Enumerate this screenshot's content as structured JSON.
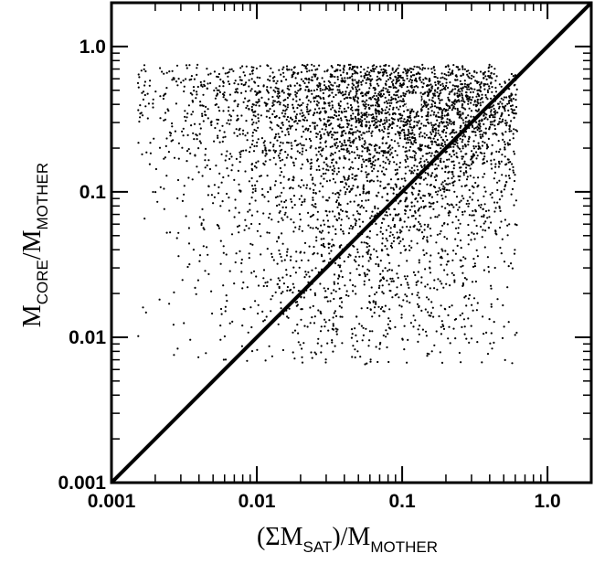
{
  "chart_data": {
    "type": "scatter",
    "title": "",
    "xlabel": {
      "prefix": "(ΣM",
      "sub1": "SAT",
      "mid": ")/M",
      "sub2": "MOTHER"
    },
    "ylabel": {
      "prefix": "M",
      "sub1": "CORE",
      "mid": "/M",
      "sub2": "MOTHER"
    },
    "xscale": "log",
    "yscale": "log",
    "xlim": [
      0.001,
      2.0
    ],
    "ylim": [
      0.001,
      2.0
    ],
    "xticks": [
      {
        "value": 0.001,
        "label": "0.001"
      },
      {
        "value": 0.01,
        "label": "0.01"
      },
      {
        "value": 0.1,
        "label": "0.1"
      },
      {
        "value": 1.0,
        "label": "1.0"
      }
    ],
    "yticks": [
      {
        "value": 0.001,
        "label": "0.001"
      },
      {
        "value": 0.01,
        "label": "0.01"
      },
      {
        "value": 0.1,
        "label": "0.1"
      },
      {
        "value": 1.0,
        "label": "1.0"
      }
    ],
    "grid": false,
    "reference_line": {
      "type": "y=x",
      "x": [
        0.001,
        2.0
      ],
      "y": [
        0.001,
        2.0
      ]
    },
    "highlight_point": {
      "x": 0.12,
      "y": 0.42,
      "marker": "white-square"
    },
    "cloud_regions": [
      {
        "cx": 0.1,
        "cy": 0.45,
        "sx": 1.0,
        "sy": 0.3,
        "n": 2000
      },
      {
        "cx": 0.04,
        "cy": 0.5,
        "sx": 1.4,
        "sy": 0.22,
        "n": 900
      },
      {
        "cx": 0.2,
        "cy": 0.38,
        "sx": 0.6,
        "sy": 0.35,
        "n": 1200
      },
      {
        "cx": 0.1,
        "cy": 0.15,
        "sx": 0.75,
        "sy": 0.55,
        "n": 1400
      },
      {
        "cx": 0.07,
        "cy": 0.04,
        "sx": 0.6,
        "sy": 0.6,
        "n": 800
      },
      {
        "cx": 0.045,
        "cy": 0.015,
        "sx": 0.45,
        "sy": 0.45,
        "n": 250
      },
      {
        "cx": 0.012,
        "cy": 0.2,
        "sx": 0.7,
        "sy": 0.7,
        "n": 250
      }
    ],
    "colors": {
      "points": "#000000",
      "line": "#000000",
      "highlight": "#ffffff"
    }
  }
}
